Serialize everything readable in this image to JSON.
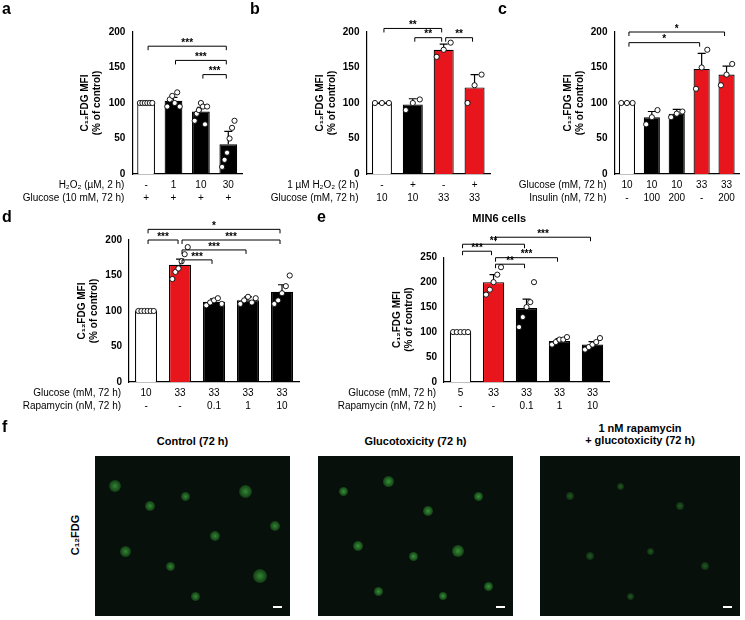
{
  "chart_data": [
    {
      "panel": "a",
      "type": "bar",
      "y_label": [
        "C₁₂FDG MFI",
        "(% of control)"
      ],
      "values": [
        100,
        103,
        88,
        42
      ],
      "errors": [
        0,
        5,
        6,
        18
      ],
      "points": [
        [
          100,
          100,
          100,
          100,
          100,
          100
        ],
        [
          95,
          105,
          110,
          100,
          115,
          95
        ],
        [
          75,
          85,
          90,
          100,
          95,
          70,
          95
        ],
        [
          10,
          20,
          30,
          50,
          65,
          75
        ]
      ],
      "colors": [
        "#ffffff",
        "#000000",
        "#000000",
        "#000000"
      ],
      "marker": "circle",
      "ylim": [
        0,
        200
      ],
      "yticks": [
        0,
        50,
        100,
        150,
        200
      ],
      "grid": false,
      "tick_labels": "y",
      "condition_rows": [
        {
          "label": "H₂O₂ (µM, 2 h)",
          "values": [
            "-",
            "1",
            "10",
            "30"
          ]
        },
        {
          "label": "Glucose (10 mM, 72 h)",
          "values": [
            "+",
            "+",
            "+",
            "+"
          ]
        }
      ],
      "significance": [
        {
          "from": 0,
          "to": 3,
          "y": 180,
          "label": "***"
        },
        {
          "from": 1,
          "to": 3,
          "y": 160,
          "label": "***"
        },
        {
          "from": 2,
          "to": 3,
          "y": 140,
          "label": "***"
        }
      ]
    },
    {
      "panel": "b",
      "type": "bar",
      "y_label": [
        "C₁₂FDG MFI",
        "(% of control)"
      ],
      "values": [
        100,
        98,
        175,
        122
      ],
      "errors": [
        0,
        8,
        8,
        18
      ],
      "points": [
        [
          100,
          100,
          100
        ],
        [
          90,
          100,
          105
        ],
        [
          165,
          175,
          185
        ],
        [
          100,
          125,
          140
        ]
      ],
      "colors": [
        "#ffffff",
        "#000000",
        "#e8161c",
        "#e8161c"
      ],
      "marker": "circle",
      "ylim": [
        0,
        200
      ],
      "yticks": [
        0,
        50,
        100,
        150,
        200
      ],
      "grid": false,
      "tick_labels": "y",
      "condition_rows": [
        {
          "label": "1 µM H₂O₂ (2 h)",
          "values": [
            "-",
            "+",
            "-",
            "+"
          ]
        },
        {
          "label": "Glucose (mM, 72 h)",
          "values": [
            "10",
            "10",
            "33",
            "33"
          ]
        }
      ],
      "significance": [
        {
          "from": 0,
          "to": 2,
          "y": 205,
          "label": "**"
        },
        {
          "from": 1,
          "to": 2,
          "y": 192,
          "label": "**"
        },
        {
          "from": 2,
          "to": 3,
          "y": 192,
          "label": "**"
        }
      ]
    },
    {
      "panel": "c",
      "type": "bar",
      "y_label": [
        "C₁₂FDG MFI",
        "(% of control)"
      ],
      "values": [
        100,
        80,
        85,
        148,
        140
      ],
      "errors": [
        0,
        8,
        6,
        22,
        12
      ],
      "points": [
        [
          100,
          100,
          100
        ],
        [
          70,
          80,
          90
        ],
        [
          80,
          85,
          88
        ],
        [
          120,
          150,
          175
        ],
        [
          125,
          140,
          155
        ]
      ],
      "colors": [
        "#ffffff",
        "#000000",
        "#000000",
        "#e8161c",
        "#e8161c"
      ],
      "marker": "circle",
      "ylim": [
        0,
        200
      ],
      "yticks": [
        0,
        50,
        100,
        150,
        200
      ],
      "grid": false,
      "tick_labels": "y",
      "condition_rows": [
        {
          "label": "Glucose (mM, 72 h)",
          "values": [
            "10",
            "10",
            "10",
            "33",
            "33"
          ]
        },
        {
          "label": "Insulin (nM, 72 h)",
          "values": [
            "-",
            "100",
            "200",
            "-",
            "200"
          ]
        }
      ],
      "significance": [
        {
          "from": 0,
          "to": 3,
          "y": 185,
          "label": "*"
        },
        {
          "from": 0,
          "to": 4,
          "y": 200,
          "label": "*"
        }
      ]
    },
    {
      "panel": "d",
      "type": "bar",
      "y_label": [
        "C₁₂FDG MFI",
        "(% of control)"
      ],
      "values": [
        100,
        165,
        113,
        115,
        127
      ],
      "errors": [
        0,
        8,
        4,
        5,
        10
      ],
      "points": [
        [
          100,
          100,
          100,
          100,
          100,
          100
        ],
        [
          145,
          155,
          160,
          170,
          180,
          190
        ],
        [
          108,
          112,
          115,
          118,
          110
        ],
        [
          110,
          115,
          120,
          112,
          118
        ],
        [
          110,
          115,
          125,
          135,
          150
        ]
      ],
      "colors": [
        "#ffffff",
        "#e8161c",
        "#000000",
        "#000000",
        "#000000"
      ],
      "marker": "circle",
      "ylim": [
        0,
        200
      ],
      "yticks": [
        0,
        50,
        100,
        150,
        200
      ],
      "grid": false,
      "tick_labels": "y",
      "condition_rows": [
        {
          "label": "Glucose (mM, 72 h)",
          "values": [
            "10",
            "33",
            "33",
            "33",
            "33"
          ]
        },
        {
          "label": "Rapamycin (nM, 72 h)",
          "values": [
            "-",
            "-",
            "0.1",
            "1",
            "10"
          ]
        }
      ],
      "significance": [
        {
          "from": 0,
          "to": 4,
          "y": 215,
          "label": "*"
        },
        {
          "from": 0,
          "to": 1,
          "y": 200,
          "label": "***"
        },
        {
          "from": 1,
          "to": 4,
          "y": 200,
          "label": "***"
        },
        {
          "from": 1,
          "to": 3,
          "y": 186,
          "label": "***"
        },
        {
          "from": 1,
          "to": 2,
          "y": 172,
          "label": "***"
        }
      ]
    },
    {
      "panel": "e",
      "type": "bar",
      "title": "MIN6 cells",
      "y_label": [
        "C₁₂FDG MFI",
        "(% of control)"
      ],
      "values": [
        100,
        200,
        148,
        82,
        75
      ],
      "errors": [
        0,
        15,
        18,
        5,
        6
      ],
      "points": [
        [
          100,
          100,
          100,
          100,
          100
        ],
        [
          175,
          185,
          200,
          215,
          230
        ],
        [
          110,
          130,
          150,
          160,
          200
        ],
        [
          75,
          80,
          85,
          85,
          90
        ],
        [
          65,
          70,
          75,
          80,
          88
        ]
      ],
      "colors": [
        "#ffffff",
        "#e8161c",
        "#000000",
        "#000000",
        "#000000"
      ],
      "marker": "circle",
      "ylim": [
        0,
        250
      ],
      "yticks": [
        0,
        50,
        100,
        150,
        200,
        250
      ],
      "grid": false,
      "tick_labels": "y",
      "condition_rows": [
        {
          "label": "Glucose (mM, 72 h)",
          "values": [
            "5",
            "33",
            "33",
            "33",
            "33"
          ]
        },
        {
          "label": "Rapamycin (nM, 72 h)",
          "values": [
            "-",
            "-",
            "0.1",
            "1",
            "10"
          ]
        }
      ],
      "significance": [
        {
          "from": 0,
          "to": 1,
          "y": 262,
          "label": "***"
        },
        {
          "from": 0,
          "to": 2,
          "y": 276,
          "label": "**"
        },
        {
          "from": 1,
          "to": 2,
          "y": 236,
          "label": "**"
        },
        {
          "from": 1,
          "to": 3,
          "y": 249,
          "label": "***"
        },
        {
          "from": 1,
          "to": 4,
          "y": 290,
          "label": "***"
        }
      ]
    }
  ],
  "panel_f": {
    "panel": "f",
    "row_label": "C₁₂FDG",
    "images": [
      [
        "Control (72 h)"
      ],
      [
        "Glucotoxicity (72 h)"
      ],
      [
        "1 nM rapamycin",
        "+ glucotoxicity (72 h)"
      ]
    ]
  }
}
